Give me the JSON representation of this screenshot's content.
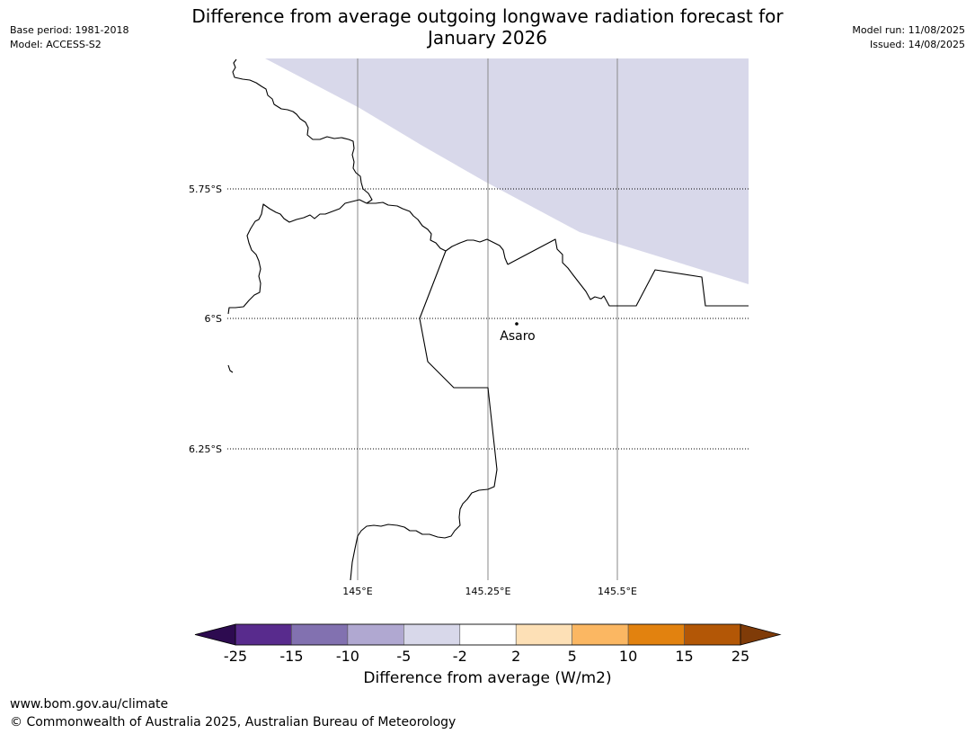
{
  "title_line1": "Difference from average outgoing longwave radiation forecast for",
  "title_line2": "January 2026",
  "meta_left": {
    "base_period": "Base period: 1981-2018",
    "model": "Model: ACCESS-S2"
  },
  "meta_right": {
    "model_run": "Model run: 11/08/2025",
    "issued": "Issued: 14/08/2025"
  },
  "map": {
    "lat_labels": [
      "5.75°S",
      "6°S",
      "6.25°S"
    ],
    "lon_labels": [
      "145°E",
      "145.25°E",
      "145.5°E"
    ],
    "place": {
      "name": "Asaro"
    },
    "shaded_category": "-5 to -2",
    "shaded_color": "#d8d8ea"
  },
  "colorbar": {
    "ticks": [
      "-25",
      "-15",
      "-10",
      "-5",
      "-2",
      "2",
      "5",
      "10",
      "15",
      "25"
    ],
    "colors": [
      "#582b8d",
      "#8271b0",
      "#b0a8d1",
      "#d8d8ea",
      "#ffffff",
      "#fde0b6",
      "#fbb762",
      "#e2820f",
      "#b35706"
    ],
    "under_color": "#2d0b50",
    "over_color": "#7f3b08",
    "label": "Difference from average (W/m2)"
  },
  "footer": {
    "url": "www.bom.gov.au/climate",
    "copyright": "© Commonwealth of Australia 2025, Australian Bureau of Meteorology"
  }
}
